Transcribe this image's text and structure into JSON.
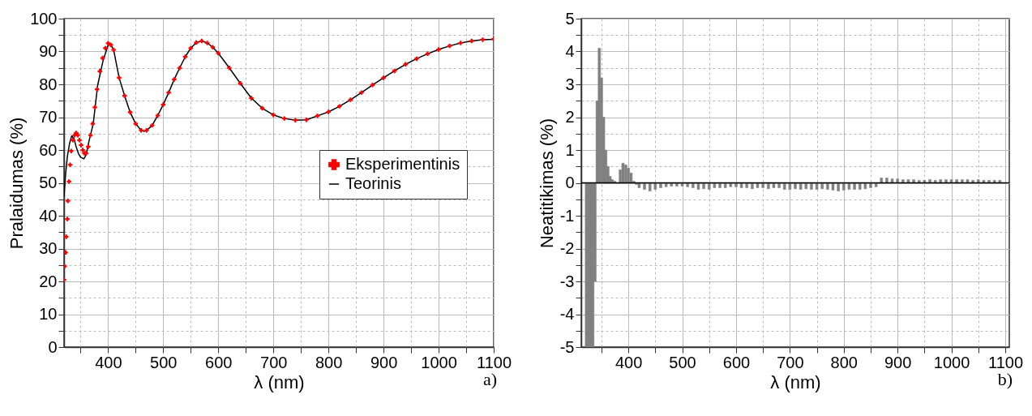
{
  "chart_data": [
    {
      "type": "line",
      "xlabel": "λ (nm)",
      "ylabel": "Pralaidumas (%)",
      "xlim": [
        320,
        1100
      ],
      "ylim": [
        0,
        100
      ],
      "xticks": [
        {
          "value": 350,
          "label": null
        },
        400,
        {
          "value": 450,
          "label": null
        },
        500,
        {
          "value": 550,
          "label": null
        },
        600,
        {
          "value": 650,
          "label": null
        },
        700,
        {
          "value": 750,
          "label": null
        },
        800,
        {
          "value": 850,
          "label": null
        },
        900,
        {
          "value": 950,
          "label": null
        },
        1000,
        {
          "value": 1050,
          "label": null
        },
        1100
      ],
      "yticks": [
        0,
        {
          "value": 5,
          "label": null
        },
        10,
        {
          "value": 15,
          "label": null
        },
        20,
        {
          "value": 25,
          "label": null
        },
        30,
        {
          "value": 35,
          "label": null
        },
        40,
        {
          "value": 45,
          "label": null
        },
        50,
        {
          "value": 55,
          "label": null
        },
        60,
        {
          "value": 65,
          "label": null
        },
        70,
        {
          "value": 75,
          "label": null
        },
        80,
        {
          "value": 85,
          "label": null
        },
        90,
        {
          "value": 95,
          "label": null
        },
        100
      ],
      "grid": true,
      "legend": "right",
      "annotations": [
        "a)"
      ],
      "series": [
        {
          "name": "Eksperimentinis",
          "type": "scatter",
          "marker": "cross",
          "color": "#ff0000",
          "x": [
            320,
            321,
            323,
            324,
            326,
            327,
            329,
            331,
            333,
            336,
            339,
            342,
            345,
            348,
            351,
            354,
            357,
            360,
            364,
            368,
            372,
            376,
            380,
            385,
            390,
            395,
            400,
            405,
            410,
            420,
            430,
            440,
            450,
            460,
            470,
            480,
            490,
            500,
            510,
            520,
            530,
            540,
            550,
            560,
            570,
            580,
            590,
            600,
            620,
            640,
            660,
            680,
            700,
            720,
            740,
            760,
            780,
            800,
            820,
            840,
            860,
            880,
            900,
            920,
            940,
            960,
            980,
            1000,
            1020,
            1040,
            1060,
            1080,
            1100
          ],
          "values": [
            20.5,
            24.6,
            28.8,
            33.6,
            39,
            44.5,
            50.4,
            55.5,
            59.7,
            63,
            64.5,
            65.2,
            64.5,
            63,
            61.5,
            60,
            59,
            59,
            61,
            64.5,
            68,
            73,
            78.5,
            84,
            88,
            91,
            92.5,
            92,
            90.5,
            82,
            76.5,
            71.5,
            68,
            66,
            66,
            67.5,
            70.5,
            73.8,
            77.5,
            81.5,
            85,
            88.4,
            91,
            92.7,
            93.2,
            92.6,
            91.3,
            89.5,
            85,
            80.3,
            75.8,
            72.7,
            70.7,
            69.6,
            69.1,
            69.2,
            70.4,
            71.6,
            73.3,
            75.3,
            77.5,
            79.8,
            82,
            84.1,
            86.1,
            87.8,
            89.3,
            90.6,
            91.7,
            92.6,
            93.2,
            93.6,
            93.8
          ]
        },
        {
          "name": "Teorinis",
          "type": "line",
          "color": "#000000",
          "x": [
            320,
            323,
            326,
            330,
            334,
            338,
            342,
            346,
            350,
            356,
            360,
            365,
            373,
            381,
            391,
            400,
            405,
            410,
            420,
            430,
            440,
            450,
            460,
            466,
            470,
            480,
            490,
            500,
            510,
            520,
            530,
            540,
            550,
            560,
            570,
            580,
            590,
            600,
            620,
            640,
            660,
            680,
            700,
            720,
            740,
            760,
            780,
            800,
            820,
            840,
            860,
            880,
            900,
            920,
            940,
            960,
            980,
            1000,
            1020,
            1040,
            1060,
            1080,
            1100
          ],
          "values": [
            46,
            53,
            58,
            62,
            64.3,
            63.5,
            61,
            59,
            57.8,
            57.3,
            58.5,
            62.5,
            68,
            79.7,
            87.3,
            92,
            92,
            90.5,
            82,
            76.5,
            71.5,
            68,
            66,
            65.7,
            66,
            67.5,
            70.5,
            73.8,
            77.5,
            81.5,
            85,
            88.4,
            91,
            92.7,
            93.2,
            92.6,
            91.3,
            89.5,
            85,
            80.3,
            75.8,
            72.7,
            70.7,
            69.6,
            69.1,
            69.2,
            70.4,
            71.6,
            73.3,
            75.3,
            77.5,
            79.8,
            82,
            84.1,
            86.1,
            87.8,
            89.3,
            90.6,
            91.7,
            92.6,
            93.2,
            93.6,
            93.7
          ]
        }
      ]
    },
    {
      "type": "bar",
      "xlabel": "λ (nm)",
      "ylabel": "Neatitikimas (%)",
      "xlim": [
        320,
        1100
      ],
      "ylim": [
        -5,
        5
      ],
      "xticks": [
        {
          "value": 350,
          "label": null
        },
        400,
        {
          "value": 450,
          "label": null
        },
        500,
        {
          "value": 550,
          "label": null
        },
        600,
        {
          "value": 650,
          "label": null
        },
        700,
        {
          "value": 750,
          "label": null
        },
        800,
        {
          "value": 850,
          "label": null
        },
        900,
        {
          "value": 950,
          "label": null
        },
        1000,
        {
          "value": 1050,
          "label": null
        },
        1100
      ],
      "yticks": [
        -5,
        {
          "value": -4.5,
          "label": null
        },
        -4,
        {
          "value": -3.5,
          "label": null
        },
        -3,
        {
          "value": -2.5,
          "label": null
        },
        -2,
        {
          "value": -1.5,
          "label": null
        },
        -1,
        {
          "value": -0.5,
          "label": null
        },
        0,
        {
          "value": 0.5,
          "label": null
        },
        1,
        {
          "value": 1.5,
          "label": null
        },
        2,
        {
          "value": 2.5,
          "label": null
        },
        3,
        {
          "value": 3.5,
          "label": null
        },
        4,
        {
          "value": 4.5,
          "label": null
        },
        5
      ],
      "grid": true,
      "color": "#808080",
      "annotations": [
        "b)"
      ],
      "ref_lines": [
        {
          "axis": "y",
          "value": 0,
          "color": "#000000"
        }
      ],
      "x": [
        322,
        326,
        330,
        334,
        338,
        342,
        346,
        350,
        354,
        358,
        362,
        366,
        370,
        375,
        380,
        385,
        390,
        395,
        400,
        405,
        410,
        415,
        420,
        430,
        440,
        450,
        460,
        470,
        480,
        490,
        500,
        510,
        520,
        530,
        540,
        550,
        560,
        570,
        580,
        590,
        600,
        610,
        620,
        630,
        640,
        650,
        660,
        670,
        680,
        690,
        700,
        710,
        720,
        730,
        740,
        750,
        760,
        770,
        780,
        790,
        800,
        810,
        820,
        830,
        840,
        850,
        860,
        870,
        880,
        890,
        900,
        910,
        920,
        930,
        940,
        950,
        960,
        970,
        980,
        990,
        1000,
        1010,
        1020,
        1030,
        1040,
        1050,
        1060,
        1070,
        1080,
        1090
      ],
      "values": [
        -5,
        -5,
        -5,
        -5,
        -3,
        2.5,
        4.1,
        3.2,
        2,
        1,
        0.5,
        0.2,
        0.1,
        0.05,
        0,
        0.4,
        0.6,
        0.55,
        0.45,
        0.3,
        0.05,
        -0.05,
        -0.15,
        -0.2,
        -0.25,
        -0.2,
        -0.15,
        -0.12,
        -0.1,
        -0.1,
        -0.1,
        -0.12,
        -0.15,
        -0.2,
        -0.18,
        -0.2,
        -0.15,
        -0.15,
        -0.15,
        -0.12,
        -0.12,
        -0.15,
        -0.15,
        -0.18,
        -0.15,
        -0.15,
        -0.18,
        -0.15,
        -0.15,
        -0.2,
        -0.2,
        -0.18,
        -0.2,
        -0.18,
        -0.2,
        -0.2,
        -0.18,
        -0.2,
        -0.22,
        -0.25,
        -0.22,
        -0.2,
        -0.2,
        -0.2,
        -0.18,
        -0.15,
        -0.12,
        0.15,
        0.15,
        0.12,
        0.12,
        0.1,
        0.1,
        0.1,
        0.08,
        0.08,
        0.1,
        0.08,
        0.1,
        0.1,
        0.1,
        0.1,
        0.1,
        0.1,
        0.08,
        0.1,
        0.08,
        0.08,
        0.08,
        0.08
      ]
    }
  ]
}
